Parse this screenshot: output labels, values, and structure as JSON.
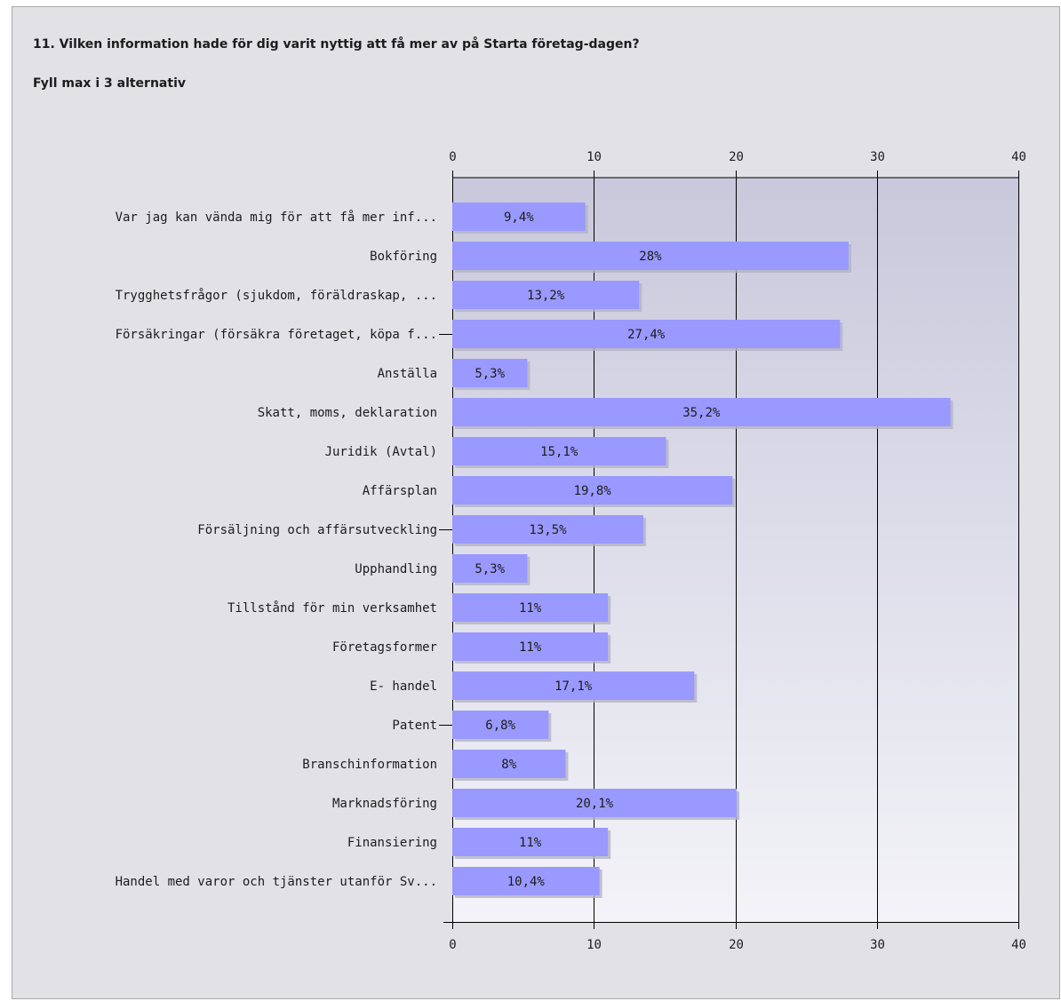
{
  "question": {
    "title": "11. Vilken information hade för dig varit nyttig att få mer av på Starta företag-dagen?",
    "instruction": "Fyll max i 3 alternativ"
  },
  "colors": {
    "bar": "#9999ff",
    "bar_shadow": "#b3b3c4",
    "plot_top": "#c9c8dc",
    "plot_bottom": "#f3f3f8",
    "panel": "#e2e1e6",
    "grid": "#000000"
  },
  "chart_data": {
    "type": "bar",
    "orientation": "horizontal",
    "title": "",
    "xlim": [
      0,
      40
    ],
    "ticks": [
      0,
      10,
      20,
      30,
      40
    ],
    "grid": true,
    "categories": [
      "Var jag kan vända mig för att få mer inf...",
      "Bokföring",
      "Trygghetsfrågor (sjukdom, föräldraskap, ...",
      "Försäkringar (försäkra företaget, köpa f...",
      "Anställa",
      "Skatt, moms, deklaration",
      "Juridik (Avtal)",
      "Affärsplan",
      "Försäljning och affärsutveckling",
      "Upphandling",
      "Tillstånd för min verksamhet",
      "Företagsformer",
      "E- handel",
      "Patent",
      "Branschinformation",
      "Marknadsföring",
      "Finansiering",
      "Handel med varor och tjänster utanför Sv..."
    ],
    "values": [
      9.4,
      28,
      13.2,
      27.4,
      5.3,
      35.2,
      15.1,
      19.8,
      13.5,
      5.3,
      11,
      11,
      17.1,
      6.8,
      8,
      20.1,
      11,
      10.4
    ],
    "value_labels": [
      "9,4%",
      "28%",
      "13,2%",
      "27,4%",
      "5,3%",
      "35,2%",
      "15,1%",
      "19,8%",
      "13,5%",
      "5,3%",
      "11%",
      "11%",
      "17,1%",
      "6,8%",
      "8%",
      "20,1%",
      "11%",
      "10,4%"
    ],
    "tick_marks_on": [
      3,
      8,
      13
    ]
  }
}
